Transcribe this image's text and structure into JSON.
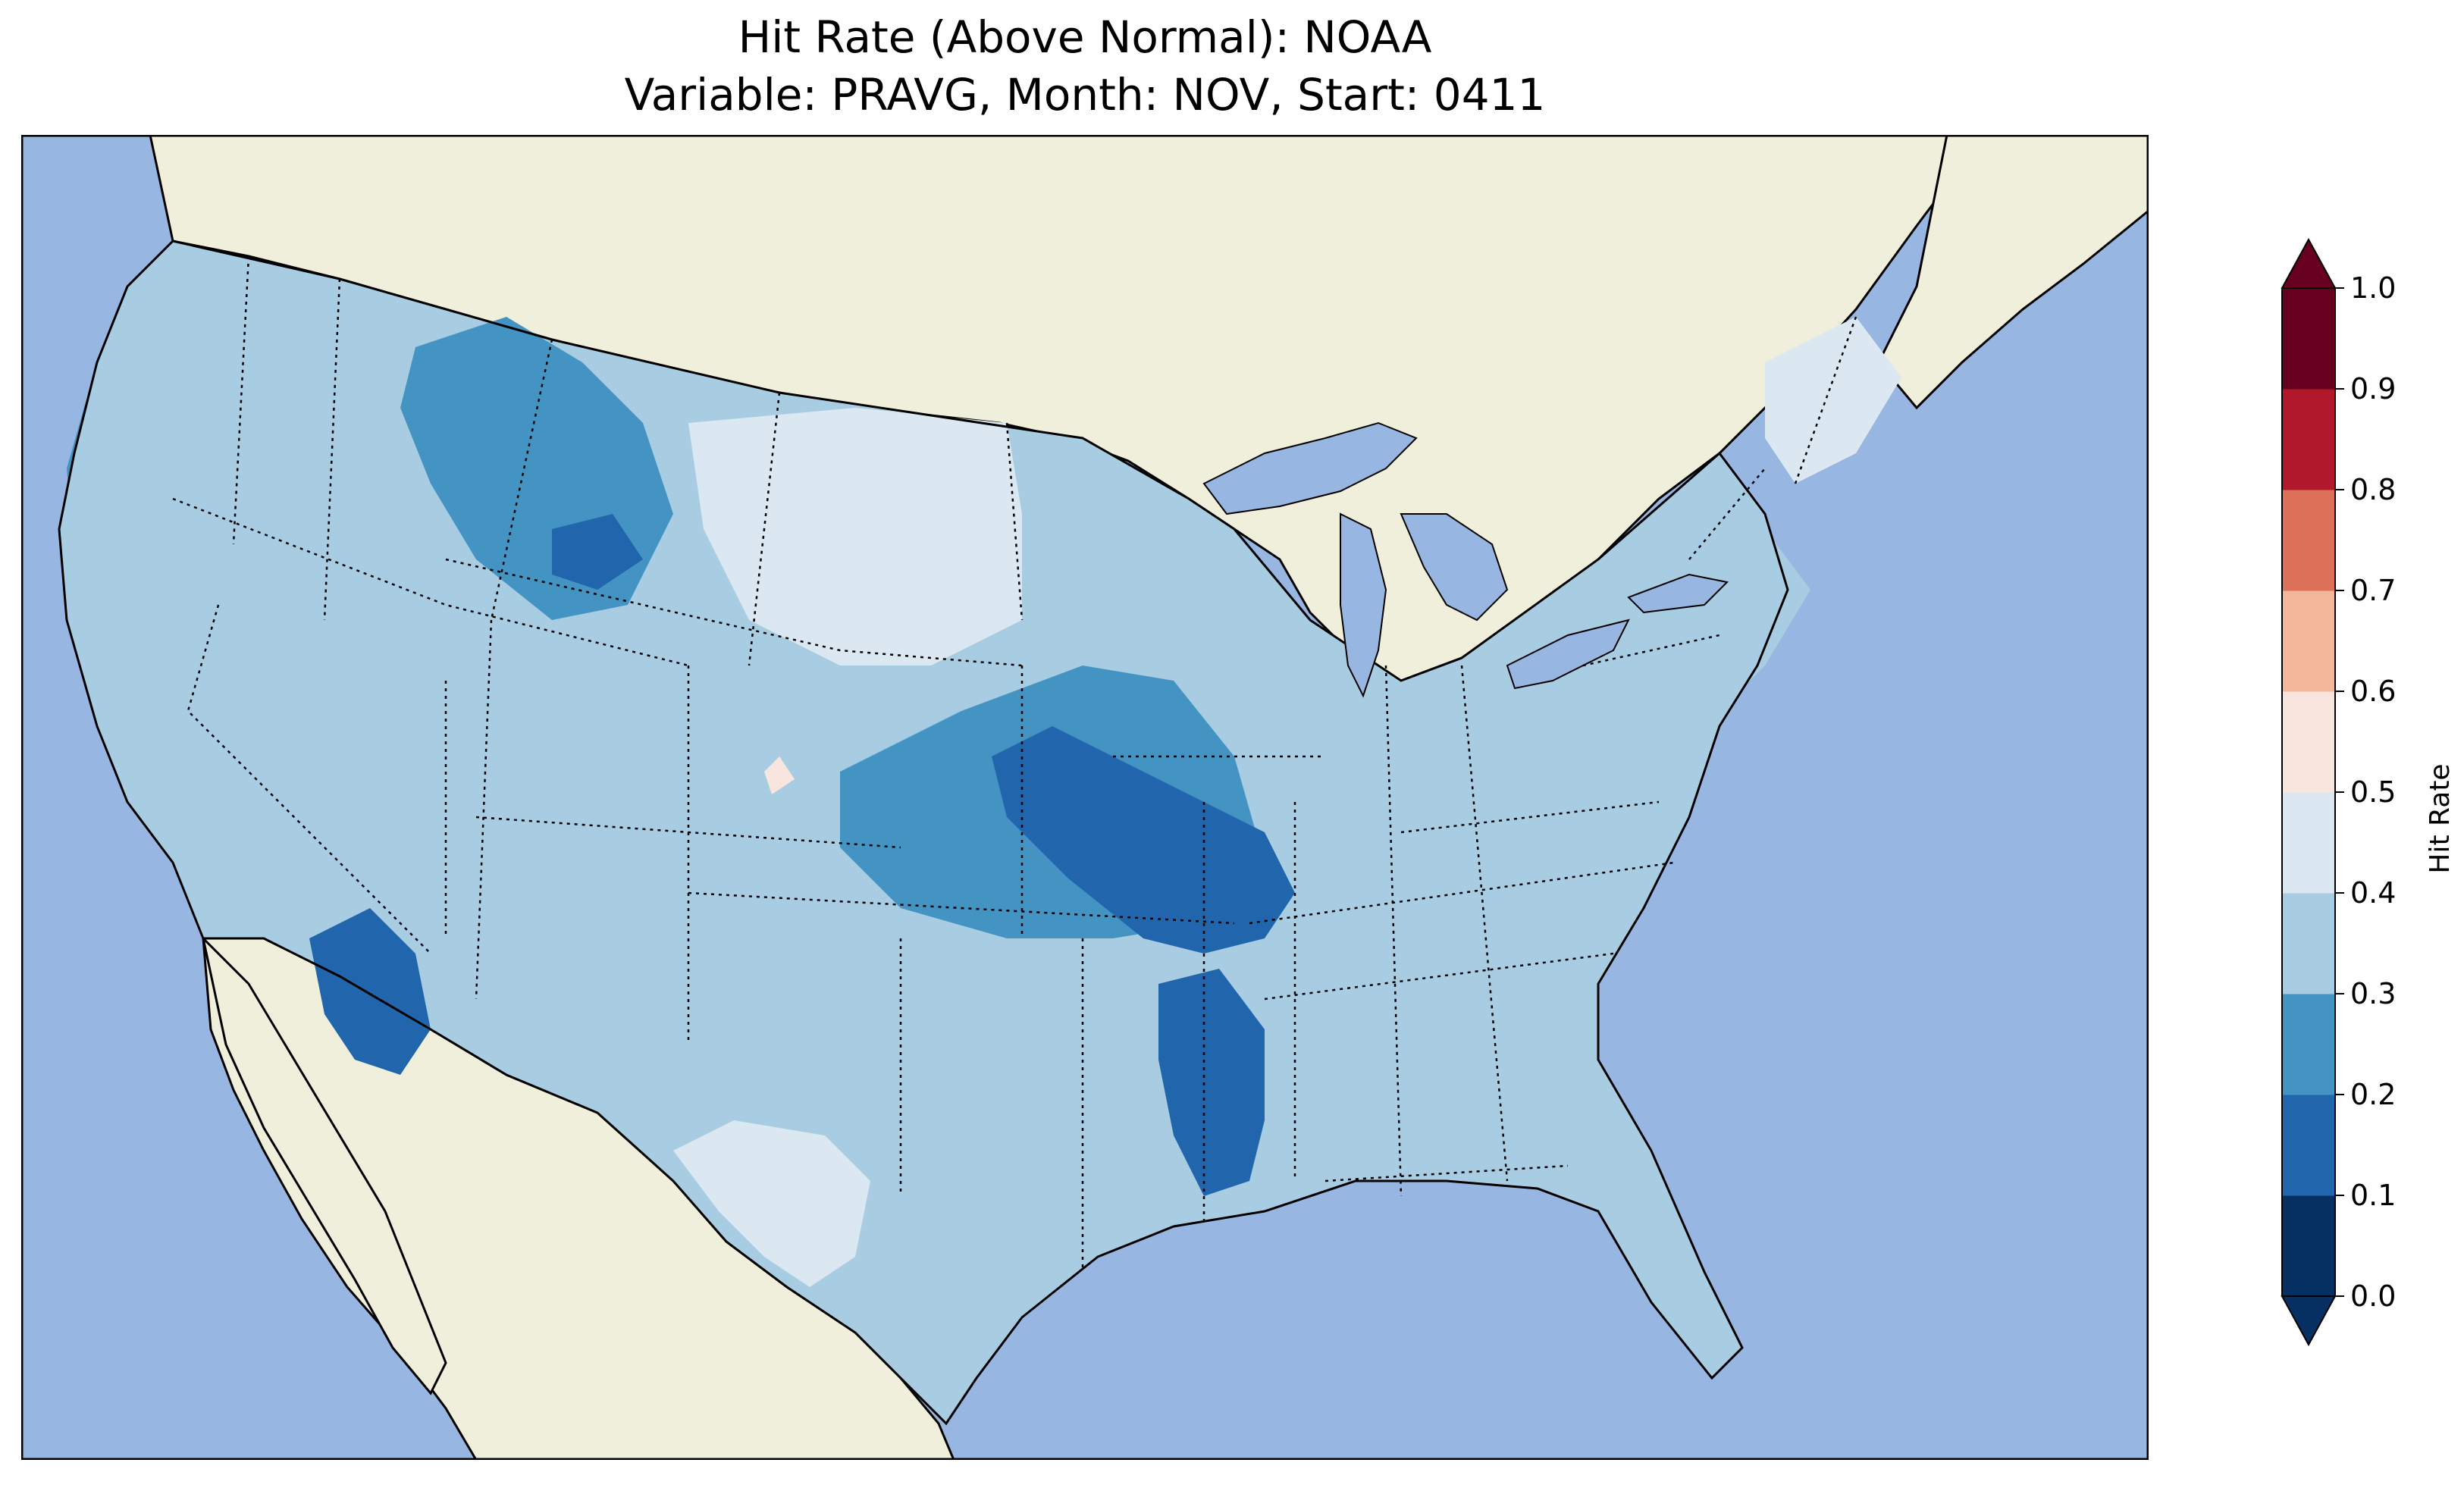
{
  "title": {
    "line1": "Hit Rate (Above Normal): NOAA",
    "line2": "Variable: PRAVG, Month: NOV, Start: 0411"
  },
  "colors": {
    "ocean": "#97b6e1",
    "land": "#efefdb",
    "lakes": "#97b6e1"
  },
  "colorbar": {
    "label": "Hit Rate",
    "ticks": [
      "0.0",
      "0.1",
      "0.2",
      "0.3",
      "0.4",
      "0.5",
      "0.6",
      "0.7",
      "0.8",
      "0.9",
      "1.0"
    ],
    "bins": [
      {
        "min": 0.0,
        "max": 0.1,
        "color": "#053061"
      },
      {
        "min": 0.1,
        "max": 0.2,
        "color": "#2166ac"
      },
      {
        "min": 0.2,
        "max": 0.3,
        "color": "#4393c3"
      },
      {
        "min": 0.3,
        "max": 0.4,
        "color": "#a8cde3"
      },
      {
        "min": 0.4,
        "max": 0.5,
        "color": "#dce8f1"
      },
      {
        "min": 0.5,
        "max": 0.6,
        "color": "#f8e6de"
      },
      {
        "min": 0.6,
        "max": 0.7,
        "color": "#f4b79b"
      },
      {
        "min": 0.7,
        "max": 0.8,
        "color": "#dc7059"
      },
      {
        "min": 0.8,
        "max": 0.9,
        "color": "#b2182b"
      },
      {
        "min": 0.9,
        "max": 1.0,
        "color": "#67001f"
      }
    ],
    "extend": "both"
  },
  "regions": [
    {
      "name": "pacific-northwest-coast",
      "value": 0.25
    },
    {
      "name": "west-interior",
      "value": 0.35
    },
    {
      "name": "idaho-montana-core",
      "value": 0.25
    },
    {
      "name": "wyoming-montana-low",
      "value": 0.15
    },
    {
      "name": "northern-plains",
      "value": 0.45
    },
    {
      "name": "colorado-high",
      "value": 0.55
    },
    {
      "name": "central-plains",
      "value": 0.25
    },
    {
      "name": "midwest-core",
      "value": 0.15
    },
    {
      "name": "lower-mississippi",
      "value": 0.15
    },
    {
      "name": "southwest-arizona",
      "value": 0.15
    },
    {
      "name": "texas-west",
      "value": 0.45
    },
    {
      "name": "southeast",
      "value": 0.35
    },
    {
      "name": "northeast",
      "value": 0.35
    },
    {
      "name": "maine-coast",
      "value": 0.45
    }
  ]
}
